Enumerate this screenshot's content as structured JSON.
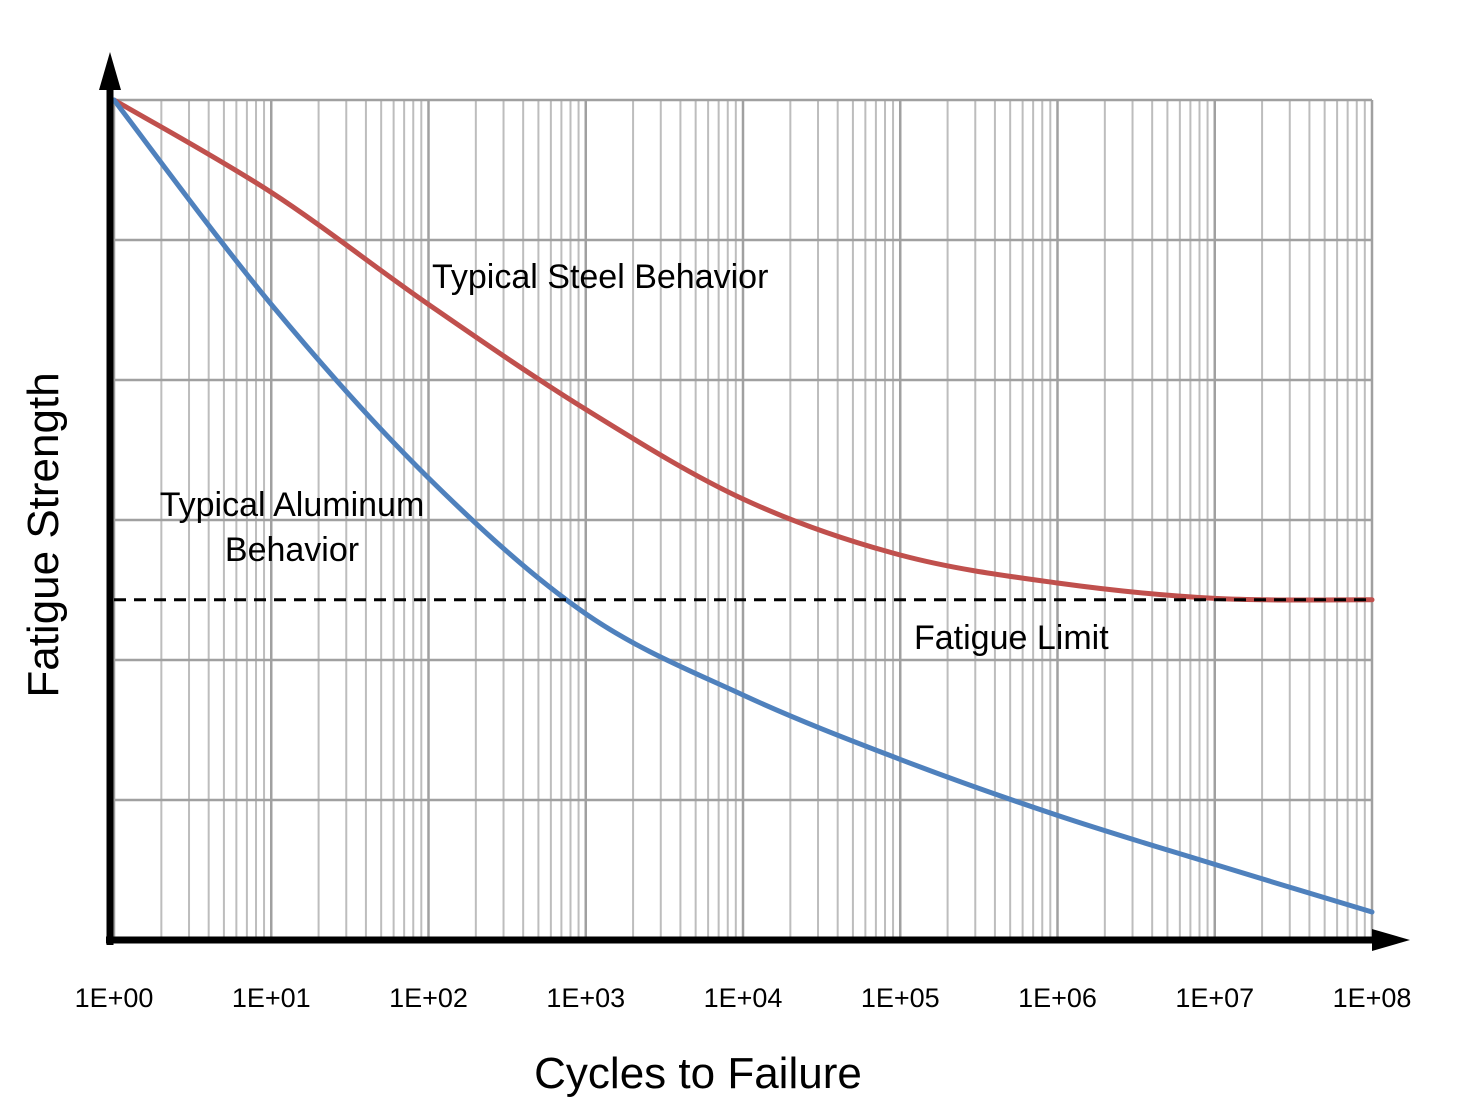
{
  "chart_data": {
    "type": "line",
    "title": "",
    "xlabel": "Cycles to Failure",
    "ylabel": "Fatigue Strength",
    "x_scale": "log",
    "xlim": [
      1,
      100000000
    ],
    "ylim": [
      0,
      6
    ],
    "y_tick_labels_shown": false,
    "grid": true,
    "x_tick_labels": [
      "1E+00",
      "1E+01",
      "1E+02",
      "1E+03",
      "1E+04",
      "1E+05",
      "1E+06",
      "1E+07",
      "1E+08"
    ],
    "x": [
      1,
      10,
      100,
      1000,
      10000,
      100000,
      1000000,
      10000000,
      100000000
    ],
    "series": [
      {
        "name": "Typical Steel Behavior",
        "color": "#c0504d",
        "values": [
          6.0,
          5.34,
          4.54,
          3.79,
          3.15,
          2.75,
          2.55,
          2.44,
          2.43
        ]
      },
      {
        "name": "Typical Aluminum Behavior",
        "color": "#4f81bd",
        "values": [
          6.0,
          4.54,
          3.3,
          2.33,
          1.75,
          1.29,
          0.89,
          0.54,
          0.2
        ]
      }
    ],
    "reference_line": {
      "label": "Fatigue Limit",
      "y": 2.43,
      "style": "dashed",
      "color": "#000000"
    },
    "annotations": {
      "steel": "Typical Steel Behavior",
      "aluminum_line1": "Typical Aluminum",
      "aluminum_line2": "Behavior",
      "fatigue_limit": "Fatigue Limit"
    }
  }
}
